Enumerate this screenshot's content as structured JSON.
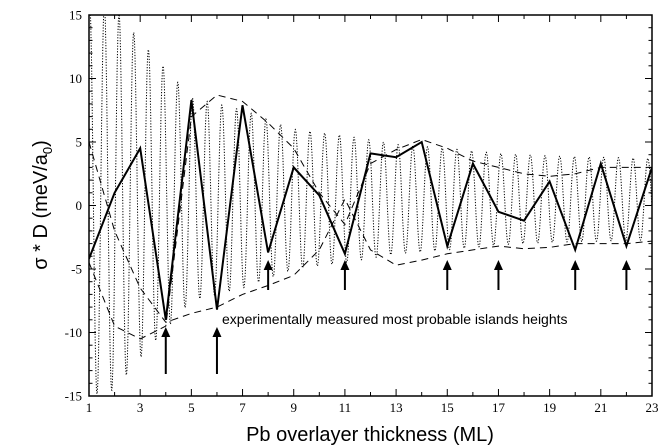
{
  "chart_data": {
    "type": "line",
    "title": "",
    "xlabel": "Pb overlayer thickness (ML)",
    "ylabel": "σ * D  (meV/a",
    "ylabel_sub": "0",
    "ylabel_close": ")",
    "xlim": [
      1,
      23
    ],
    "ylim": [
      -15,
      15
    ],
    "xticks": [
      1,
      3,
      5,
      7,
      9,
      11,
      13,
      15,
      17,
      19,
      21,
      23
    ],
    "yticks": [
      -15,
      -10,
      -5,
      0,
      5,
      10,
      15
    ],
    "grid": false,
    "legend": "none",
    "series": [
      {
        "style": "solid-thick",
        "x": [
          1,
          2,
          3,
          4,
          5,
          6,
          7,
          8,
          9,
          10,
          11,
          12,
          13,
          14,
          15,
          16,
          17,
          18,
          19,
          20,
          21,
          22,
          23
        ],
        "y": [
          -4.2,
          1.0,
          4.5,
          -9.0,
          8.3,
          -8.2,
          7.9,
          -3.7,
          3.0,
          0.8,
          -3.8,
          4.1,
          3.8,
          5.0,
          -3.2,
          3.3,
          -0.5,
          -1.2,
          1.9,
          -3.5,
          3.3,
          -3.2,
          3.0
        ]
      },
      {
        "style": "dotted-oscillation",
        "x_start": 1,
        "x_end": 23,
        "amplitude_points": [
          [
            1,
            15.5
          ],
          [
            2,
            15.0
          ],
          [
            3,
            12.5
          ],
          [
            5,
            8.0
          ],
          [
            7,
            7.0
          ],
          [
            9,
            5.5
          ],
          [
            11,
            5.0
          ],
          [
            13,
            4.3
          ],
          [
            15,
            4.0
          ],
          [
            17,
            3.6
          ],
          [
            19,
            3.4
          ],
          [
            21,
            3.3
          ],
          [
            23,
            3.2
          ]
        ],
        "center": 0.5,
        "period": 0.574
      },
      {
        "style": "dashed-upper-envelope",
        "x": [
          1,
          2,
          3,
          4,
          5,
          6,
          7,
          8,
          9,
          10,
          11,
          12,
          13,
          14,
          15,
          16,
          17,
          18,
          19,
          20,
          21,
          22,
          23
        ],
        "y": [
          -4.5,
          -9.5,
          -10.5,
          -9.5,
          7.0,
          8.7,
          8.2,
          6.5,
          4.5,
          1.0,
          -1.5,
          3.3,
          4.4,
          5.2,
          4.5,
          3.5,
          3.0,
          2.5,
          2.3,
          2.5,
          3.0,
          3.0,
          3.0
        ]
      },
      {
        "style": "dashed-lower-envelope",
        "x": [
          1,
          2,
          3,
          4,
          5,
          6,
          7,
          8,
          9,
          10,
          11,
          12,
          13,
          14,
          15,
          16,
          17,
          18,
          19,
          20,
          21,
          22,
          23
        ],
        "y": [
          5.0,
          -2.0,
          -6.5,
          -9.2,
          -8.5,
          -8.0,
          -7.0,
          -6.3,
          -5.5,
          -3.5,
          0.5,
          -3.5,
          -4.7,
          -4.3,
          -3.8,
          -3.5,
          -3.2,
          -3.4,
          -3.3,
          -3.0,
          -3.0,
          -3.0,
          -2.8
        ]
      }
    ],
    "arrows_at_x": [
      4,
      6,
      8,
      11,
      15,
      17,
      20,
      22
    ],
    "annotation": "experimentally measured most probable islands heights"
  }
}
